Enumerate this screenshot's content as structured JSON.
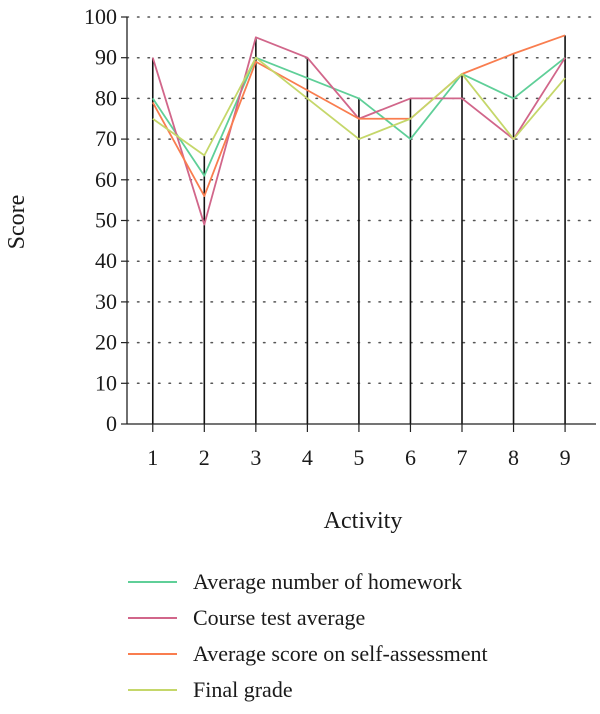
{
  "chart_data": {
    "type": "line",
    "title": "",
    "xlabel": "Activity",
    "ylabel": "Score",
    "x": [
      1,
      2,
      3,
      4,
      5,
      6,
      7,
      8,
      9
    ],
    "ylim": [
      0,
      100
    ],
    "yticks": [
      0,
      10,
      20,
      30,
      40,
      50,
      60,
      70,
      80,
      90,
      100
    ],
    "grid": "dotted horizontal",
    "legend_position": "bottom",
    "drop_lines": [
      90,
      66,
      95,
      90,
      80,
      80,
      86,
      91,
      95.5
    ],
    "series": [
      {
        "name": "Average number of homework",
        "color": "#5fcf98",
        "values": [
          80,
          61,
          90,
          85,
          80,
          70,
          86,
          80,
          90
        ]
      },
      {
        "name": "Course test average",
        "color": "#d1668a",
        "values": [
          90,
          49,
          95,
          90,
          75,
          80,
          80,
          70,
          90
        ]
      },
      {
        "name": "Average score on self-assessment",
        "color": "#f97d4f",
        "values": [
          79,
          56,
          89,
          82,
          75,
          75,
          86,
          91,
          95.5
        ]
      },
      {
        "name": "Final grade",
        "color": "#c5d76a",
        "values": [
          75,
          66,
          90,
          80,
          70,
          75,
          86,
          70,
          85
        ]
      }
    ]
  }
}
